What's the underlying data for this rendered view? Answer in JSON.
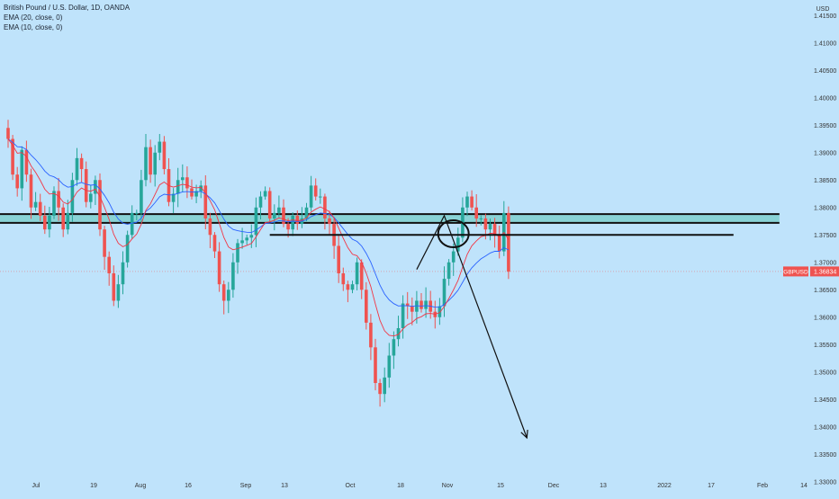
{
  "symbol": "British Pound / U.S. Dollar, 1D, OANDA",
  "indicators": [
    "EMA (20, close, 0)",
    "EMA (10, close, 0)"
  ],
  "currency": "USD",
  "ticker": "GBPUSD",
  "colors": {
    "background": "#bfe3fb",
    "up": "#26a69a",
    "down": "#ef5350",
    "ema20": "#2962ff",
    "ema10": "#f23645",
    "zone_fill": "#7fd0cf",
    "line": "#111111"
  },
  "chart_data": {
    "type": "candlestick",
    "y_ticks": [
      "1.41500",
      "1.41000",
      "1.40500",
      "1.40000",
      "1.39500",
      "1.39000",
      "1.38500",
      "1.38000",
      "1.37500",
      "1.37000",
      "1.36500",
      "1.36000",
      "1.35500",
      "1.35000",
      "1.34500",
      "1.34000",
      "1.33500",
      "1.33000"
    ],
    "y_range": [
      1.328,
      1.4175
    ],
    "x_ticks": [
      "Jul",
      "19",
      "Aug",
      "16",
      "Sep",
      "13",
      "Oct",
      "18",
      "Nov",
      "15",
      "Dec",
      "13",
      "2022",
      "17",
      "Feb",
      "14"
    ],
    "last_price": "1.36834",
    "close_path": [
      1.3925,
      1.386,
      1.3835,
      1.3905,
      1.386,
      1.38,
      1.381,
      1.3785,
      1.376,
      1.3785,
      1.383,
      1.38,
      1.376,
      1.379,
      1.385,
      1.389,
      1.387,
      1.381,
      1.3825,
      1.385,
      1.376,
      1.371,
      1.368,
      1.363,
      1.366,
      1.37,
      1.375,
      1.379,
      1.379,
      1.385,
      1.391,
      1.386,
      1.39,
      1.392,
      1.387,
      1.381,
      1.3825,
      1.385,
      1.3855,
      1.3835,
      1.382,
      1.383,
      1.384,
      1.378,
      1.375,
      1.372,
      1.366,
      1.363,
      1.365,
      1.37,
      1.3735,
      1.374,
      1.3745,
      1.375,
      1.38,
      1.382,
      1.383,
      1.378,
      1.379,
      1.38,
      1.377,
      1.376,
      1.3785,
      1.377,
      1.378,
      1.38,
      1.384,
      1.382,
      1.382,
      1.378,
      1.377,
      1.373,
      1.368,
      1.366,
      1.365,
      1.366,
      1.37,
      1.365,
      1.359,
      1.3545,
      1.348,
      1.346,
      1.349,
      1.353,
      1.356,
      1.358,
      1.3625,
      1.362,
      1.361,
      1.363,
      1.3615,
      1.363,
      1.361,
      1.36,
      1.362,
      1.367,
      1.37,
      1.372,
      1.3745,
      1.38,
      1.382,
      1.38,
      1.378,
      1.378,
      1.376,
      1.377,
      1.375,
      1.372,
      1.379,
      1.3683
    ],
    "ema_note": "EMA (20) and EMA (10) computed on close_path",
    "zones": [
      {
        "name": "resistance zone",
        "price_top": 1.3788,
        "price_bottom": 1.3772,
        "x_start_day": -4,
        "x_end_day": 168
      },
      {
        "name": "support line",
        "price": 1.375,
        "x_start_day": 57,
        "x_end_day": 158
      }
    ],
    "annotation_circle": {
      "day": 97,
      "price": 1.3752
    },
    "arrow_path_prices": [
      {
        "day": 89,
        "price": 1.3687
      },
      {
        "day": 95,
        "price": 1.3785
      },
      {
        "day": 113,
        "price": 1.338
      }
    ]
  }
}
